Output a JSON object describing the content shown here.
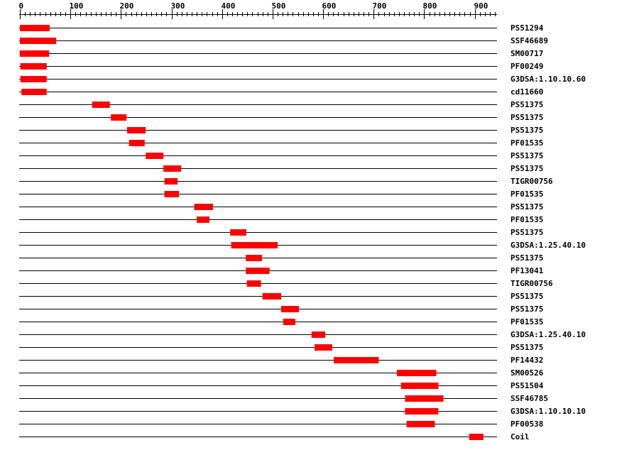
{
  "chart_data": {
    "type": "range",
    "color": "#ff0000",
    "xlim": [
      0,
      944
    ],
    "xticks": [
      0,
      100,
      200,
      300,
      400,
      500,
      600,
      700,
      800,
      900
    ],
    "xminor_step": 10,
    "rows": [
      {
        "label": "PS51294",
        "start": 0,
        "end": 59
      },
      {
        "label": "SSF46689",
        "start": 0,
        "end": 72
      },
      {
        "label": "SM00717",
        "start": 0,
        "end": 58
      },
      {
        "label": "PF00249",
        "start": 1,
        "end": 53
      },
      {
        "label": "G3DSA:1.10.10.60",
        "start": 1,
        "end": 53
      },
      {
        "label": "cd11660",
        "start": 3,
        "end": 53
      },
      {
        "label": "PS51375",
        "start": 143,
        "end": 178
      },
      {
        "label": "PS51375",
        "start": 180,
        "end": 211
      },
      {
        "label": "PS51375",
        "start": 212,
        "end": 249
      },
      {
        "label": "PF01535",
        "start": 216,
        "end": 247
      },
      {
        "label": "PS51375",
        "start": 249,
        "end": 284
      },
      {
        "label": "PS51375",
        "start": 284,
        "end": 319
      },
      {
        "label": "TIGR00756",
        "start": 286,
        "end": 312
      },
      {
        "label": "PF01535",
        "start": 286,
        "end": 315
      },
      {
        "label": "PS51375",
        "start": 345,
        "end": 382
      },
      {
        "label": "PF01535",
        "start": 350,
        "end": 375
      },
      {
        "label": "PS51375",
        "start": 416,
        "end": 448
      },
      {
        "label": "G3DSA:1.25.40.10",
        "start": 418,
        "end": 510
      },
      {
        "label": "PS51375",
        "start": 447,
        "end": 479
      },
      {
        "label": "PF13041",
        "start": 447,
        "end": 494
      },
      {
        "label": "TIGR00756",
        "start": 449,
        "end": 477
      },
      {
        "label": "PS51375",
        "start": 480,
        "end": 517
      },
      {
        "label": "PS51375",
        "start": 517,
        "end": 552
      },
      {
        "label": "PF01535",
        "start": 521,
        "end": 545
      },
      {
        "label": "G3DSA:1.25.40.10",
        "start": 577,
        "end": 604
      },
      {
        "label": "PS51375",
        "start": 583,
        "end": 618
      },
      {
        "label": "PF14432",
        "start": 621,
        "end": 710
      },
      {
        "label": "SM00526",
        "start": 746,
        "end": 824
      },
      {
        "label": "PS51504",
        "start": 754,
        "end": 828
      },
      {
        "label": "SSF46785",
        "start": 762,
        "end": 838
      },
      {
        "label": "G3DSA:1.10.10.10",
        "start": 762,
        "end": 828
      },
      {
        "label": "PF00538",
        "start": 765,
        "end": 821
      },
      {
        "label": "Coil",
        "start": 889,
        "end": 917
      }
    ]
  }
}
